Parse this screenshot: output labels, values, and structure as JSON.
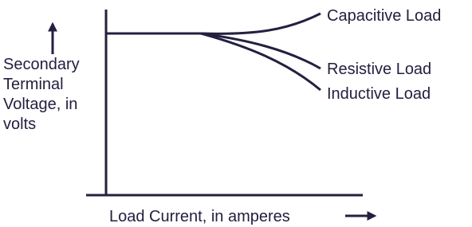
{
  "y_axis_label": [
    "Secondary",
    "Terminal",
    "Voltage, in",
    "volts"
  ],
  "x_axis_label": "Load Current, in amperes",
  "curves": [
    {
      "label": "Capacitive Load"
    },
    {
      "label": "Resistive Load"
    },
    {
      "label": "Inductive Load"
    }
  ]
}
